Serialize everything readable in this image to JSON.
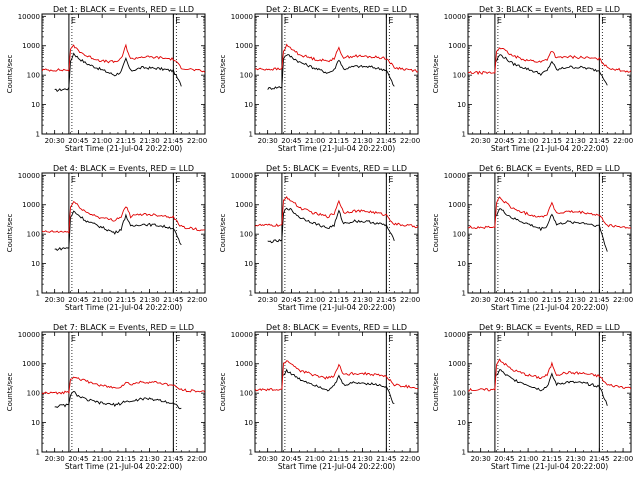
{
  "window_title": "Det 1: BLACK = Events, RED = LLD",
  "colors": {
    "background": "#ffffff",
    "events": "#000000",
    "lld": "#e00000",
    "axes": "#000000"
  },
  "shared": {
    "ylabel": "Counts/sec",
    "xlabel": "Start Time (21-Jul-04 20:22:00)",
    "xticks": [
      "20:30",
      "20:45",
      "21:00",
      "21:15",
      "21:30",
      "21:45",
      "22:00"
    ],
    "yticks": [
      "1",
      "10",
      "100",
      "1000",
      "10000"
    ]
  },
  "chart_data": [
    {
      "type": "line",
      "title": "Det 1: BLACK = Events, RED = LLD",
      "xlabel": "Start Time (21-Jul-04 20:22:00)",
      "ylabel": "Counts/sec",
      "yscale": "log",
      "xlim": [
        "20:22",
        "22:05"
      ],
      "ylim": [
        1,
        12000
      ],
      "marks": [
        "20:39",
        "21:45"
      ],
      "labels": [
        "E",
        "E"
      ],
      "x": [
        "20:22",
        "20:30",
        "20:39",
        "20:40",
        "20:42",
        "20:45",
        "20:50",
        "21:00",
        "21:08",
        "21:12",
        "21:15",
        "21:18",
        "21:25",
        "21:35",
        "21:45",
        "21:50",
        "22:05"
      ],
      "series": [
        {
          "name": "Events",
          "values": [
            null,
            30,
            35,
            300,
            550,
            380,
            250,
            150,
            100,
            130,
            350,
            140,
            180,
            170,
            140,
            45,
            null
          ]
        },
        {
          "name": "LLD",
          "values": [
            150,
            150,
            150,
            700,
            1000,
            700,
            450,
            300,
            280,
            350,
            1000,
            350,
            420,
            400,
            350,
            180,
            130
          ]
        }
      ]
    },
    {
      "type": "line",
      "title": "Det 2: BLACK = Events, RED = LLD",
      "xlabel": "Start Time (21-Jul-04 20:22:00)",
      "ylabel": "Counts/sec",
      "yscale": "log",
      "xlim": [
        "20:22",
        "22:05"
      ],
      "ylim": [
        1,
        12000
      ],
      "marks": [
        "20:39",
        "21:45"
      ],
      "labels": [
        "E",
        "E"
      ],
      "x": [
        "20:22",
        "20:30",
        "20:39",
        "20:40",
        "20:42",
        "20:45",
        "20:50",
        "21:00",
        "21:08",
        "21:12",
        "21:15",
        "21:18",
        "21:25",
        "21:35",
        "21:45",
        "21:50",
        "22:05"
      ],
      "series": [
        {
          "name": "Events",
          "values": [
            null,
            35,
            40,
            380,
            500,
            420,
            280,
            170,
            120,
            150,
            350,
            160,
            200,
            190,
            150,
            40,
            null
          ]
        },
        {
          "name": "LLD",
          "values": [
            160,
            160,
            160,
            700,
            1000,
            800,
            500,
            350,
            300,
            380,
            800,
            400,
            450,
            420,
            380,
            180,
            140
          ]
        }
      ]
    },
    {
      "type": "line",
      "title": "Det 3: BLACK = Events, RED = LLD",
      "xlabel": "Start Time (21-Jul-04 20:22:00)",
      "ylabel": "Counts/sec",
      "yscale": "log",
      "xlim": [
        "20:22",
        "22:05"
      ],
      "ylim": [
        1,
        12000
      ],
      "marks": [
        "20:39",
        "21:45"
      ],
      "labels": [
        "E",
        "E"
      ],
      "x": [
        "20:22",
        "20:30",
        "20:39",
        "20:40",
        "20:42",
        "20:45",
        "20:50",
        "21:00",
        "21:08",
        "21:12",
        "21:15",
        "21:18",
        "21:25",
        "21:35",
        "21:45",
        "21:50",
        "22:05"
      ],
      "series": [
        {
          "name": "Events",
          "values": [
            null,
            null,
            null,
            300,
            500,
            400,
            250,
            160,
            110,
            140,
            300,
            150,
            190,
            180,
            140,
            50,
            null
          ]
        },
        {
          "name": "LLD",
          "values": [
            120,
            120,
            120,
            650,
            900,
            700,
            450,
            320,
            280,
            350,
            700,
            380,
            420,
            400,
            350,
            180,
            130
          ]
        }
      ]
    },
    {
      "type": "line",
      "title": "Det 4: BLACK = Events, RED = LLD",
      "xlabel": "Start Time (21-Jul-04 20:22:00)",
      "ylabel": "Counts/sec",
      "yscale": "log",
      "xlim": [
        "20:22",
        "22:05"
      ],
      "ylim": [
        1,
        12000
      ],
      "marks": [
        "20:39",
        "21:45"
      ],
      "labels": [
        "E",
        "E"
      ],
      "x": [
        "20:22",
        "20:30",
        "20:39",
        "20:40",
        "20:42",
        "20:45",
        "20:50",
        "21:00",
        "21:08",
        "21:12",
        "21:15",
        "21:18",
        "21:25",
        "21:35",
        "21:45",
        "21:50",
        "22:05"
      ],
      "series": [
        {
          "name": "Events",
          "values": [
            null,
            30,
            35,
            350,
            600,
            450,
            280,
            170,
            110,
            150,
            450,
            180,
            220,
            200,
            160,
            40,
            null
          ]
        },
        {
          "name": "LLD",
          "values": [
            120,
            120,
            120,
            800,
            1300,
            900,
            550,
            350,
            300,
            400,
            900,
            400,
            480,
            450,
            380,
            180,
            130
          ]
        }
      ]
    },
    {
      "type": "line",
      "title": "Det 5: BLACK = Events, RED = LLD",
      "xlabel": "Start Time (21-Jul-04 20:22:00)",
      "ylabel": "Counts/sec",
      "yscale": "log",
      "xlim": [
        "20:22",
        "22:05"
      ],
      "ylim": [
        1,
        12000
      ],
      "marks": [
        "20:39",
        "21:45"
      ],
      "labels": [
        "E",
        "E"
      ],
      "x": [
        "20:22",
        "20:30",
        "20:39",
        "20:40",
        "20:42",
        "20:45",
        "20:50",
        "21:00",
        "21:08",
        "21:12",
        "21:15",
        "21:18",
        "21:25",
        "21:35",
        "21:45",
        "21:50",
        "22:05"
      ],
      "series": [
        {
          "name": "Events",
          "values": [
            null,
            55,
            60,
            500,
            800,
            650,
            380,
            230,
            160,
            200,
            600,
            230,
            280,
            260,
            200,
            60,
            null
          ]
        },
        {
          "name": "LLD",
          "values": [
            200,
            200,
            200,
            1300,
            1800,
            1400,
            800,
            500,
            400,
            500,
            1400,
            550,
            620,
            580,
            450,
            220,
            180
          ]
        }
      ]
    },
    {
      "type": "line",
      "title": "Det 6: BLACK = Events, RED = LLD",
      "xlabel": "Start Time (21-Jul-04 20:22:00)",
      "ylabel": "Counts/sec",
      "yscale": "log",
      "xlim": [
        "20:22",
        "22:05"
      ],
      "ylim": [
        1,
        12000
      ],
      "marks": [
        "20:39",
        "21:45"
      ],
      "labels": [
        "E",
        "E"
      ],
      "x": [
        "20:22",
        "20:30",
        "20:39",
        "20:40",
        "20:42",
        "20:45",
        "20:50",
        "21:00",
        "21:08",
        "21:12",
        "21:15",
        "21:18",
        "21:25",
        "21:35",
        "21:45",
        "21:50",
        "22:05"
      ],
      "series": [
        {
          "name": "Events",
          "values": [
            null,
            null,
            null,
            450,
            750,
            550,
            350,
            220,
            150,
            190,
            500,
            210,
            260,
            240,
            190,
            25,
            null
          ]
        },
        {
          "name": "LLD",
          "values": [
            170,
            170,
            170,
            1200,
            1700,
            1300,
            750,
            480,
            380,
            480,
            1200,
            500,
            580,
            540,
            430,
            200,
            160
          ]
        }
      ]
    },
    {
      "type": "line",
      "title": "Det 7: BLACK = Events, RED = LLD",
      "xlabel": "Start Time (21-Jul-04 20:22:00)",
      "ylabel": "Counts/sec",
      "yscale": "log",
      "xlim": [
        "20:22",
        "22:05"
      ],
      "ylim": [
        1,
        12000
      ],
      "marks": [
        "20:39",
        "21:45"
      ],
      "labels": [
        "E",
        "E"
      ],
      "x": [
        "20:22",
        "20:30",
        "20:39",
        "20:40",
        "20:42",
        "20:45",
        "20:50",
        "21:00",
        "21:08",
        "21:12",
        "21:15",
        "21:18",
        "21:25",
        "21:35",
        "21:45",
        "21:50",
        "22:05"
      ],
      "series": [
        {
          "name": "Events",
          "values": [
            null,
            35,
            40,
            90,
            110,
            80,
            60,
            45,
            40,
            45,
            55,
            50,
            65,
            60,
            45,
            30,
            null
          ]
        },
        {
          "name": "LLD",
          "values": [
            100,
            100,
            110,
            300,
            380,
            320,
            250,
            180,
            150,
            170,
            230,
            200,
            240,
            230,
            180,
            130,
            110
          ]
        }
      ]
    },
    {
      "type": "line",
      "title": "Det 8: BLACK = Events, RED = LLD",
      "xlabel": "Start Time (21-Jul-04 20:22:00)",
      "ylabel": "Counts/sec",
      "yscale": "log",
      "xlim": [
        "20:22",
        "22:05"
      ],
      "ylim": [
        1,
        12000
      ],
      "marks": [
        "20:39",
        "21:45"
      ],
      "labels": [
        "E",
        "E"
      ],
      "x": [
        "20:22",
        "20:30",
        "20:39",
        "20:40",
        "20:42",
        "20:45",
        "20:50",
        "21:00",
        "21:08",
        "21:12",
        "21:15",
        "21:18",
        "21:25",
        "21:35",
        "21:45",
        "21:50",
        "22:05"
      ],
      "series": [
        {
          "name": "Events",
          "values": [
            null,
            null,
            null,
            400,
            600,
            450,
            300,
            190,
            130,
            170,
            380,
            190,
            230,
            210,
            170,
            40,
            null
          ]
        },
        {
          "name": "LLD",
          "values": [
            130,
            130,
            130,
            1000,
            1300,
            1000,
            600,
            400,
            320,
            400,
            900,
            420,
            480,
            450,
            370,
            190,
            150
          ]
        }
      ]
    },
    {
      "type": "line",
      "title": "Det 9: BLACK = Events, RED = LLD",
      "xlabel": "Start Time (21-Jul-04 20:22:00)",
      "ylabel": "Counts/sec",
      "yscale": "log",
      "xlim": [
        "20:22",
        "22:05"
      ],
      "ylim": [
        1,
        12000
      ],
      "marks": [
        "20:39",
        "21:45"
      ],
      "labels": [
        "E",
        "E"
      ],
      "x": [
        "20:22",
        "20:30",
        "20:39",
        "20:40",
        "20:42",
        "20:45",
        "20:50",
        "21:00",
        "21:08",
        "21:12",
        "21:15",
        "21:18",
        "21:25",
        "21:35",
        "21:45",
        "21:50",
        "22:05"
      ],
      "series": [
        {
          "name": "Events",
          "values": [
            null,
            null,
            null,
            380,
            650,
            450,
            300,
            190,
            130,
            170,
            420,
            200,
            240,
            220,
            170,
            40,
            null
          ]
        },
        {
          "name": "LLD",
          "values": [
            130,
            130,
            130,
            1000,
            1400,
            1000,
            620,
            410,
            330,
            410,
            1000,
            430,
            500,
            470,
            380,
            190,
            150
          ]
        }
      ]
    }
  ]
}
